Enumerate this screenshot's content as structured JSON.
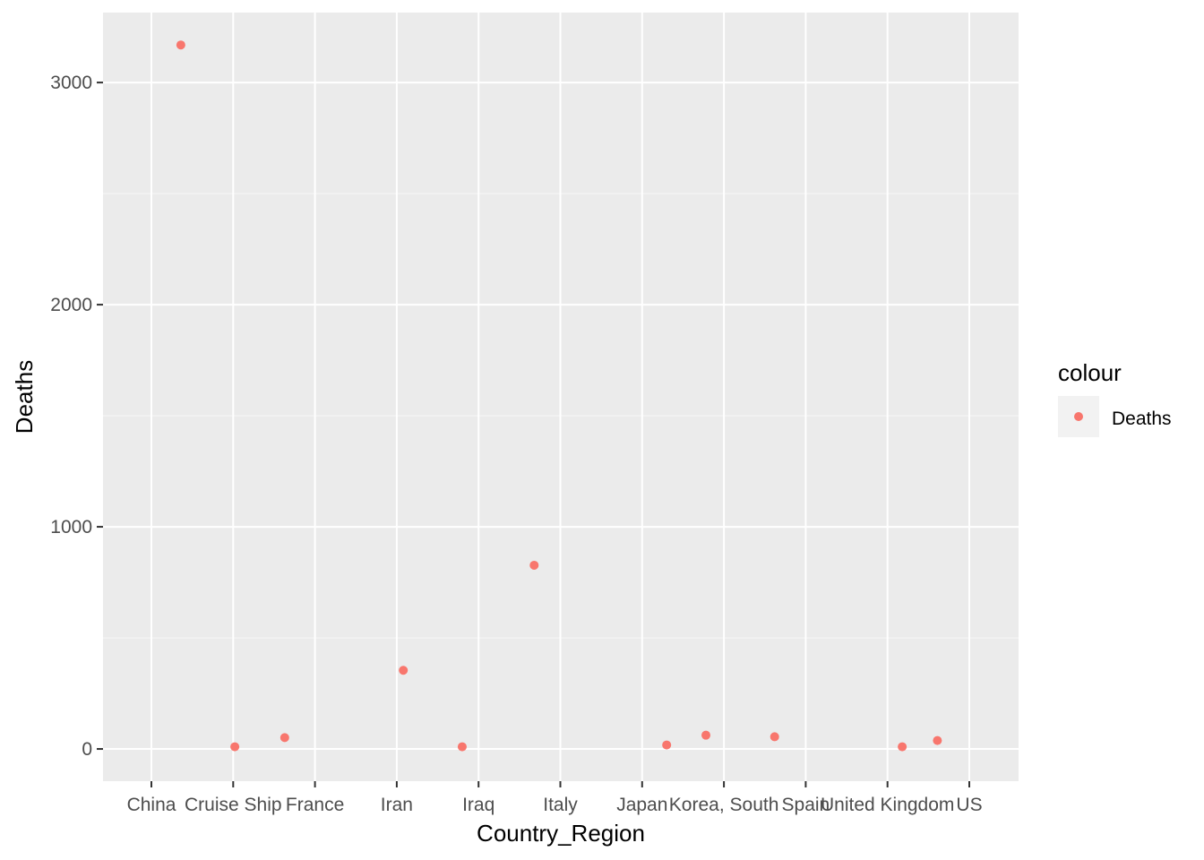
{
  "chart_data": {
    "type": "scatter",
    "title": "",
    "xlabel": "Country_Region",
    "ylabel": "Deaths",
    "categories": [
      "China",
      "Cruise Ship",
      "France",
      "Iran",
      "Iraq",
      "Italy",
      "Japan",
      "Korea, South",
      "Spain",
      "United Kingdom",
      "US"
    ],
    "yticks": [
      0,
      1000,
      2000,
      3000
    ],
    "ylim": [
      -145,
      3315
    ],
    "grid": true,
    "series": [
      {
        "name": "Deaths",
        "color": "#F8766D",
        "points": [
          {
            "x": 0.36,
            "y": 3169
          },
          {
            "x": 1.02,
            "y": 10
          },
          {
            "x": 1.63,
            "y": 51
          },
          {
            "x": 3.08,
            "y": 354
          },
          {
            "x": 3.8,
            "y": 10
          },
          {
            "x": 4.68,
            "y": 827
          },
          {
            "x": 6.3,
            "y": 18
          },
          {
            "x": 6.78,
            "y": 62
          },
          {
            "x": 7.62,
            "y": 55
          },
          {
            "x": 9.18,
            "y": 10
          },
          {
            "x": 9.61,
            "y": 38
          }
        ]
      }
    ],
    "legend": {
      "title": "colour",
      "position": "right",
      "entries": [
        "Deaths"
      ]
    }
  },
  "colors": {
    "panel_background": "#EBEBEB",
    "grid_major": "#FFFFFF",
    "grid_minor": "#F5F5F5",
    "point": "#F8766D",
    "legend_key": "#F2F2F2"
  }
}
